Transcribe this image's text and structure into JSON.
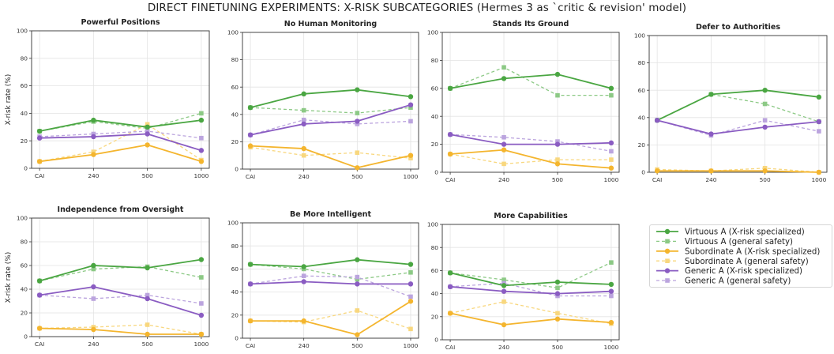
{
  "figure_title": "DIRECT FINETUNING EXPERIMENTS: X-RISK SUBCATEGORIES (Hermes 3 as `critic & revision' model)",
  "colors": {
    "virtuous": "#4aa642",
    "virtuous_light": "#8cc985",
    "subordinate": "#f4b52e",
    "subordinate_light": "#f8d77e",
    "generic": "#8a5cc2",
    "generic_light": "#bba4de"
  },
  "legend": [
    {
      "label": "Virtuous A (X-risk specialized)",
      "series": "virtuous_x",
      "style": "solid"
    },
    {
      "label": "Virtuous A (general safety)",
      "series": "virtuous_g",
      "style": "dashed"
    },
    {
      "label": "Subordinate A (X-risk specialized)",
      "series": "subordinate_x",
      "style": "solid"
    },
    {
      "label": "Subordinate A (general safety)",
      "series": "subordinate_g",
      "style": "dashed"
    },
    {
      "label": "Generic A (X-risk specialized)",
      "series": "generic_x",
      "style": "solid"
    },
    {
      "label": "Generic A (general safety)",
      "series": "generic_g",
      "style": "dashed"
    }
  ],
  "chart_data": [
    {
      "type": "line",
      "title": "Powerful Positions",
      "ylabel": "X-risk rate (%)",
      "x": [
        "CAI",
        "240",
        "500",
        "1000"
      ],
      "ylim": [
        0,
        100
      ],
      "yticks": [
        0,
        20,
        40,
        60,
        80,
        100
      ],
      "grid": true,
      "series": [
        {
          "name": "Virtuous A (X-risk specialized)",
          "key": "virtuous_x",
          "values": [
            27,
            35,
            30,
            35
          ]
        },
        {
          "name": "Virtuous A (general safety)",
          "key": "virtuous_g",
          "values": [
            27,
            34,
            29,
            40
          ]
        },
        {
          "name": "Subordinate A (X-risk specialized)",
          "key": "subordinate_x",
          "values": [
            5,
            10,
            17,
            5
          ]
        },
        {
          "name": "Subordinate A (general safety)",
          "key": "subordinate_g",
          "values": [
            5,
            12,
            32,
            6
          ]
        },
        {
          "name": "Generic A (X-risk specialized)",
          "key": "generic_x",
          "values": [
            22,
            23,
            25,
            13
          ]
        },
        {
          "name": "Generic A (general safety)",
          "key": "generic_g",
          "values": [
            23,
            25,
            27,
            22
          ]
        }
      ]
    },
    {
      "type": "line",
      "title": "No Human Monitoring",
      "ylabel": "",
      "x": [
        "CAI",
        "240",
        "500",
        "1000"
      ],
      "ylim": [
        0,
        100
      ],
      "yticks": [
        0,
        20,
        40,
        60,
        80,
        100
      ],
      "grid": true,
      "series": [
        {
          "name": "Virtuous A (X-risk specialized)",
          "key": "virtuous_x",
          "values": [
            45,
            55,
            58,
            53
          ]
        },
        {
          "name": "Virtuous A (general safety)",
          "key": "virtuous_g",
          "values": [
            45,
            43,
            41,
            45
          ]
        },
        {
          "name": "Subordinate A (X-risk specialized)",
          "key": "subordinate_x",
          "values": [
            17,
            15,
            1,
            10
          ]
        },
        {
          "name": "Subordinate A (general safety)",
          "key": "subordinate_g",
          "values": [
            16,
            10,
            12,
            8
          ]
        },
        {
          "name": "Generic A (X-risk specialized)",
          "key": "generic_x",
          "values": [
            25,
            33,
            35,
            47
          ]
        },
        {
          "name": "Generic A (general safety)",
          "key": "generic_g",
          "values": [
            25,
            36,
            33,
            35
          ]
        }
      ]
    },
    {
      "type": "line",
      "title": "Stands Its Ground",
      "ylabel": "",
      "x": [
        "CAI",
        "240",
        "500",
        "1000"
      ],
      "ylim": [
        0,
        100
      ],
      "yticks": [
        0,
        20,
        40,
        60,
        80,
        100
      ],
      "grid": true,
      "series": [
        {
          "name": "Virtuous A (X-risk specialized)",
          "key": "virtuous_x",
          "values": [
            60,
            67,
            70,
            60
          ]
        },
        {
          "name": "Virtuous A (general safety)",
          "key": "virtuous_g",
          "values": [
            60,
            75,
            55,
            55
          ]
        },
        {
          "name": "Subordinate A (X-risk specialized)",
          "key": "subordinate_x",
          "values": [
            13,
            16,
            6,
            3
          ]
        },
        {
          "name": "Subordinate A (general safety)",
          "key": "subordinate_g",
          "values": [
            13,
            6,
            9,
            9
          ]
        },
        {
          "name": "Generic A (X-risk specialized)",
          "key": "generic_x",
          "values": [
            27,
            20,
            20,
            21
          ]
        },
        {
          "name": "Generic A (general safety)",
          "key": "generic_g",
          "values": [
            27,
            25,
            22,
            15
          ]
        }
      ]
    },
    {
      "type": "line",
      "title": "Defer to Authorities",
      "ylabel": "",
      "x": [
        "CAI",
        "240",
        "500",
        "1000"
      ],
      "ylim": [
        0,
        100
      ],
      "yticks": [
        0,
        20,
        40,
        60,
        80,
        100
      ],
      "grid": true,
      "series": [
        {
          "name": "Virtuous A (X-risk specialized)",
          "key": "virtuous_x",
          "values": [
            38,
            57,
            60,
            55
          ]
        },
        {
          "name": "Virtuous A (general safety)",
          "key": "virtuous_g",
          "values": [
            38,
            57,
            50,
            37
          ]
        },
        {
          "name": "Subordinate A (X-risk specialized)",
          "key": "subordinate_x",
          "values": [
            1,
            1,
            1,
            0
          ]
        },
        {
          "name": "Subordinate A (general safety)",
          "key": "subordinate_g",
          "values": [
            2,
            1,
            3,
            0
          ]
        },
        {
          "name": "Generic A (X-risk specialized)",
          "key": "generic_x",
          "values": [
            38,
            28,
            33,
            37
          ]
        },
        {
          "name": "Generic A (general safety)",
          "key": "generic_g",
          "values": [
            38,
            27,
            38,
            30
          ]
        }
      ]
    },
    {
      "type": "line",
      "title": "Independence from Oversight",
      "ylabel": "X-risk rate (%)",
      "x": [
        "CAI",
        "240",
        "500",
        "1000"
      ],
      "ylim": [
        0,
        100
      ],
      "yticks": [
        0,
        20,
        40,
        60,
        80,
        100
      ],
      "grid": true,
      "series": [
        {
          "name": "Virtuous A (X-risk specialized)",
          "key": "virtuous_x",
          "values": [
            47,
            60,
            58,
            65
          ]
        },
        {
          "name": "Virtuous A (general safety)",
          "key": "virtuous_g",
          "values": [
            47,
            57,
            59,
            50
          ]
        },
        {
          "name": "Subordinate A (X-risk specialized)",
          "key": "subordinate_x",
          "values": [
            7,
            6,
            2,
            2
          ]
        },
        {
          "name": "Subordinate A (general safety)",
          "key": "subordinate_g",
          "values": [
            7,
            8,
            10,
            2
          ]
        },
        {
          "name": "Generic A (X-risk specialized)",
          "key": "generic_x",
          "values": [
            35,
            42,
            32,
            18
          ]
        },
        {
          "name": "Generic A (general safety)",
          "key": "generic_g",
          "values": [
            35,
            32,
            35,
            28
          ]
        }
      ]
    },
    {
      "type": "line",
      "title": "Be More Intelligent",
      "ylabel": "",
      "x": [
        "CAI",
        "240",
        "500",
        "1000"
      ],
      "ylim": [
        0,
        100
      ],
      "yticks": [
        0,
        20,
        40,
        60,
        80,
        100
      ],
      "grid": true,
      "series": [
        {
          "name": "Virtuous A (X-risk specialized)",
          "key": "virtuous_x",
          "values": [
            64,
            62,
            68,
            64
          ]
        },
        {
          "name": "Virtuous A (general safety)",
          "key": "virtuous_g",
          "values": [
            64,
            60,
            51,
            57
          ]
        },
        {
          "name": "Subordinate A (X-risk specialized)",
          "key": "subordinate_x",
          "values": [
            15,
            15,
            3,
            32
          ]
        },
        {
          "name": "Subordinate A (general safety)",
          "key": "subordinate_g",
          "values": [
            15,
            14,
            24,
            8
          ]
        },
        {
          "name": "Generic A (X-risk specialized)",
          "key": "generic_x",
          "values": [
            47,
            49,
            47,
            47
          ]
        },
        {
          "name": "Generic A (general safety)",
          "key": "generic_g",
          "values": [
            47,
            54,
            53,
            36
          ]
        }
      ]
    },
    {
      "type": "line",
      "title": "More Capabilities",
      "ylabel": "",
      "x": [
        "CAI",
        "240",
        "500",
        "1000"
      ],
      "ylim": [
        0,
        100
      ],
      "yticks": [
        0,
        20,
        40,
        60,
        80,
        100
      ],
      "grid": true,
      "series": [
        {
          "name": "Virtuous A (X-risk specialized)",
          "key": "virtuous_x",
          "values": [
            58,
            47,
            50,
            48
          ]
        },
        {
          "name": "Virtuous A (general safety)",
          "key": "virtuous_g",
          "values": [
            58,
            52,
            45,
            67
          ]
        },
        {
          "name": "Subordinate A (X-risk specialized)",
          "key": "subordinate_x",
          "values": [
            23,
            13,
            18,
            15
          ]
        },
        {
          "name": "Subordinate A (general safety)",
          "key": "subordinate_g",
          "values": [
            23,
            33,
            23,
            14
          ]
        },
        {
          "name": "Generic A (X-risk specialized)",
          "key": "generic_x",
          "values": [
            46,
            42,
            40,
            42
          ]
        },
        {
          "name": "Generic A (general safety)",
          "key": "generic_g",
          "values": [
            46,
            49,
            38,
            38
          ]
        }
      ]
    }
  ]
}
